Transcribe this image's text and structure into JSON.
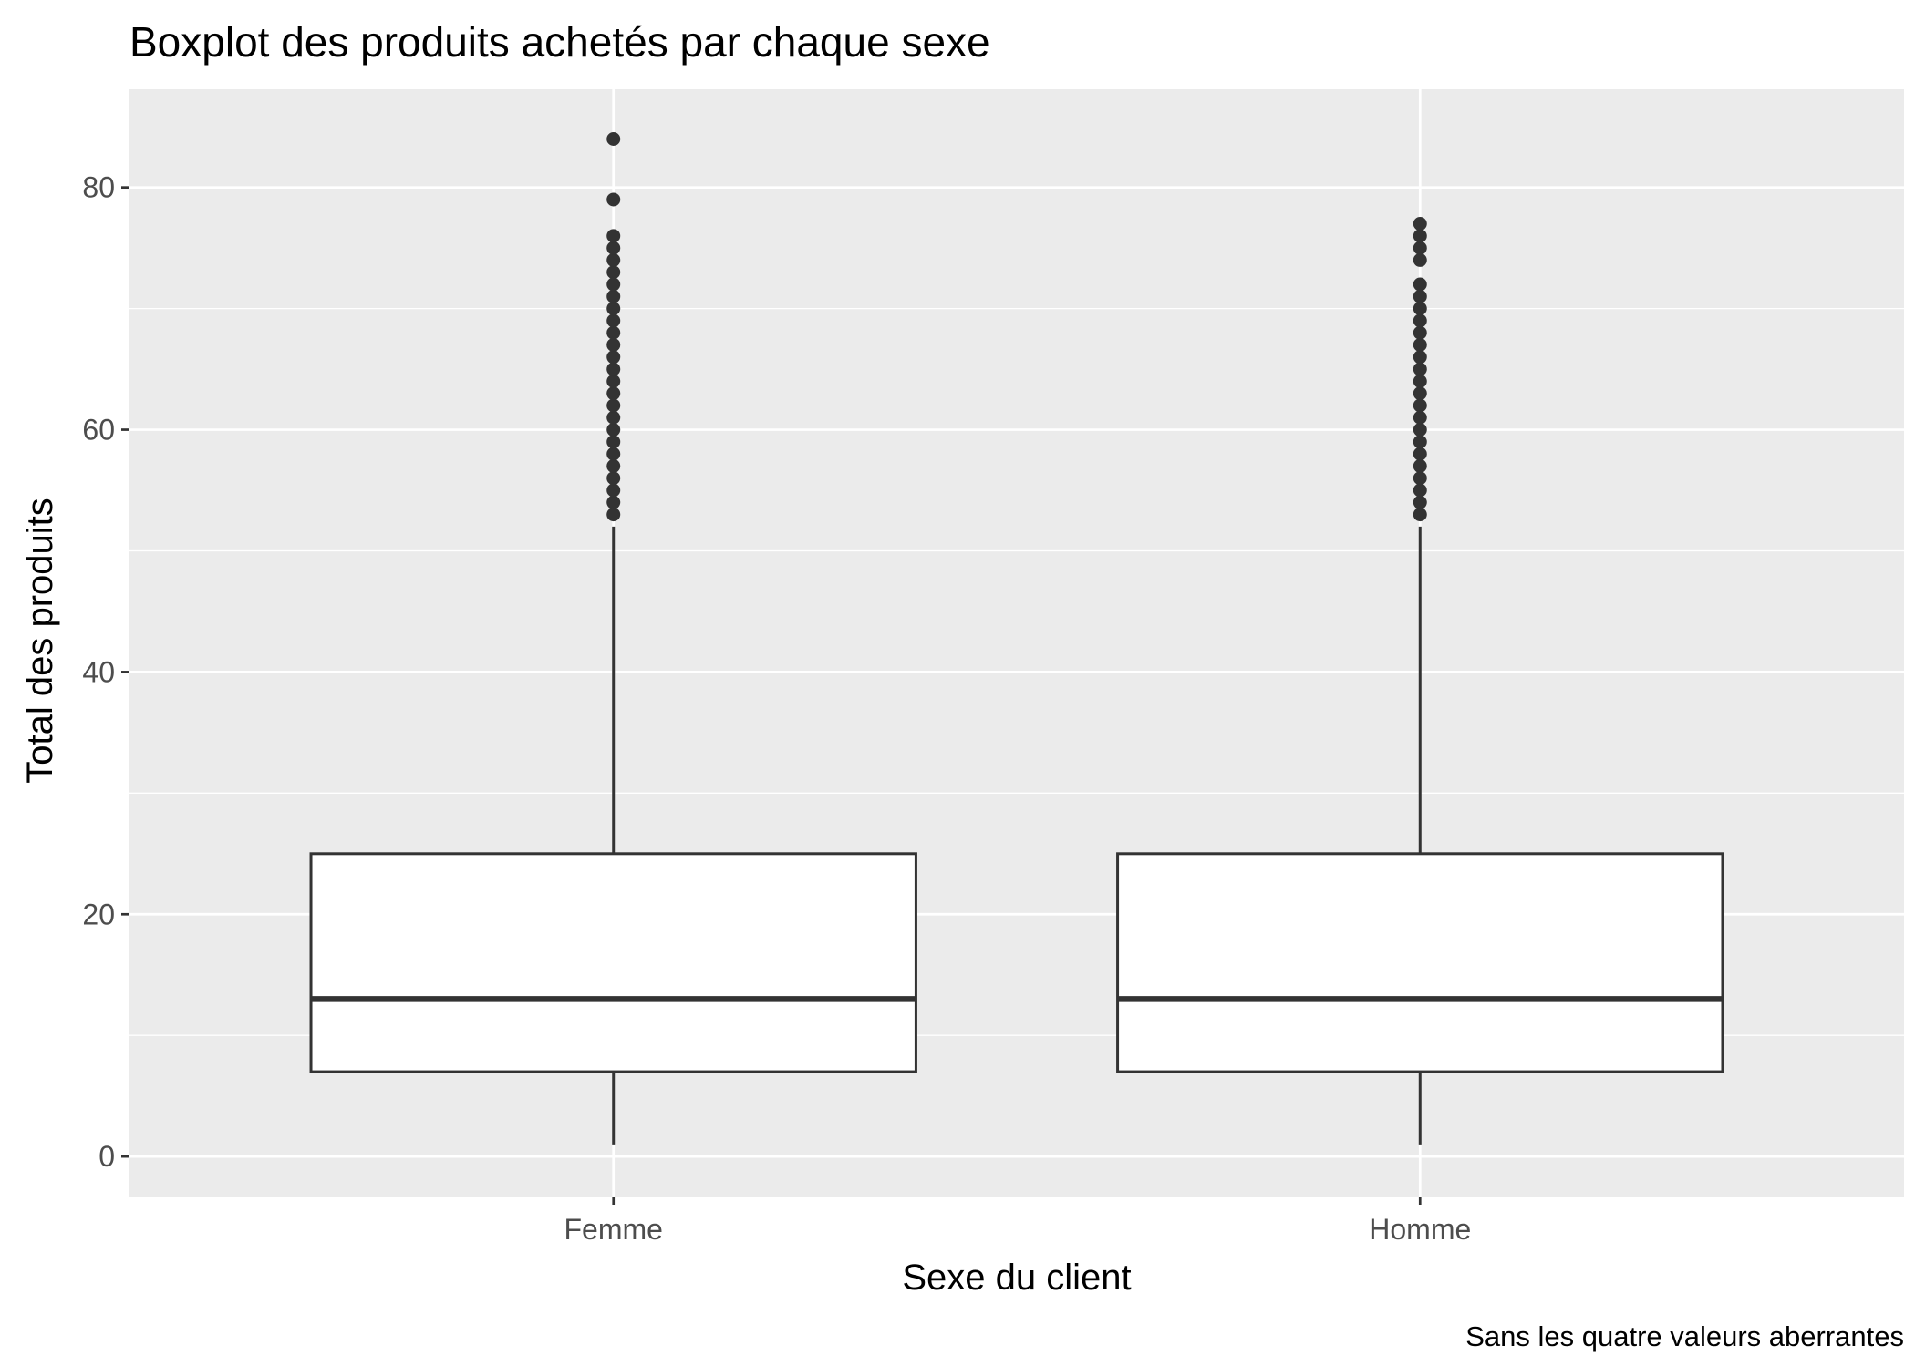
{
  "chart_data": {
    "type": "boxplot",
    "title": "Boxplot des produits achetés par chaque sexe",
    "xlabel": "Sexe du client",
    "ylabel": "Total des produits",
    "caption": "Sans les quatre valeurs aberrantes",
    "categories": [
      "Femme",
      "Homme"
    ],
    "ylim": [
      -3.3,
      88.1
    ],
    "y_ticks": [
      0,
      20,
      40,
      60,
      80
    ],
    "y_tick_labels": [
      "0",
      "20",
      "40",
      "60",
      "80"
    ],
    "grid": true,
    "legend": "none",
    "colors": {
      "panel_background": "#ebebeb",
      "grid": "#ffffff",
      "box_fill": "#ffffff",
      "box_line": "#333333",
      "outlier": "#333333"
    },
    "boxes": [
      {
        "category": "Femme",
        "whisker_low": 1,
        "q1": 7,
        "median": 13,
        "q3": 25,
        "whisker_high": 52,
        "outliers": [
          53,
          54,
          55,
          56,
          57,
          58,
          59,
          60,
          61,
          62,
          63,
          64,
          65,
          66,
          67,
          68,
          69,
          70,
          71,
          72,
          73,
          74,
          75,
          76,
          79,
          84
        ]
      },
      {
        "category": "Homme",
        "whisker_low": 1,
        "q1": 7,
        "median": 13,
        "q3": 25,
        "whisker_high": 52,
        "outliers": [
          53,
          54,
          55,
          56,
          57,
          58,
          59,
          60,
          61,
          62,
          63,
          64,
          65,
          66,
          67,
          68,
          69,
          70,
          71,
          72,
          74,
          75,
          76,
          77
        ]
      }
    ]
  }
}
